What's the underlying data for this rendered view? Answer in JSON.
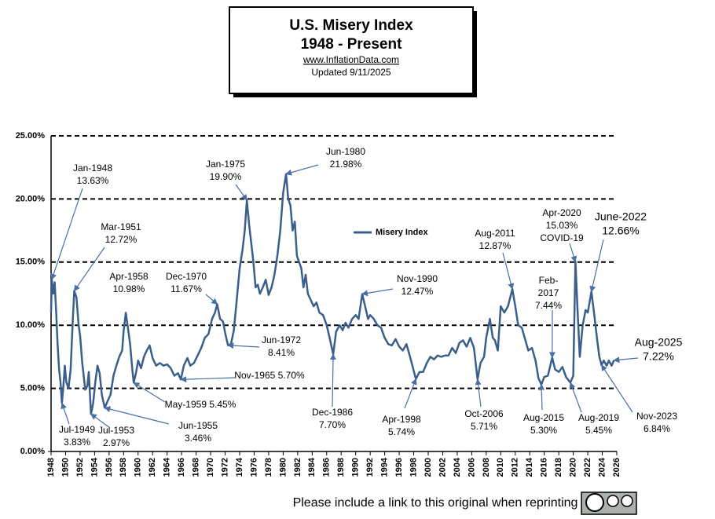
{
  "chart_data": {
    "type": "line",
    "title": "U.S. Misery Index",
    "subtitle": "1948 - Present",
    "source": "www.InflationData.com",
    "updated": "Updated  9/11/2025",
    "footer": "Please include a link to this original when reprinting",
    "x": [
      1948.0,
      1948.1,
      1948.3,
      1948.5,
      1948.7,
      1948.9,
      1949.1,
      1949.3,
      1949.5,
      1949.7,
      1949.9,
      1950.1,
      1950.4,
      1950.7,
      1951.0,
      1951.2,
      1951.5,
      1951.8,
      1952.0,
      1952.3,
      1952.5,
      1952.7,
      1953.0,
      1953.2,
      1953.5,
      1953.8,
      1954.1,
      1954.4,
      1954.7,
      1955.0,
      1955.4,
      1955.8,
      1956.2,
      1956.6,
      1957.0,
      1957.4,
      1957.8,
      1958.0,
      1958.3,
      1958.6,
      1958.9,
      1959.2,
      1959.4,
      1959.7,
      1960.0,
      1960.4,
      1960.8,
      1961.2,
      1961.6,
      1962.0,
      1962.5,
      1963.0,
      1963.5,
      1964.0,
      1964.5,
      1965.0,
      1965.5,
      1965.9,
      1966.3,
      1966.8,
      1967.2,
      1967.7,
      1968.2,
      1968.7,
      1969.2,
      1969.7,
      1970.2,
      1970.6,
      1970.9,
      1971.3,
      1971.7,
      1972.0,
      1972.4,
      1972.8,
      1973.2,
      1973.6,
      1974.0,
      1974.4,
      1974.7,
      1975.0,
      1975.3,
      1975.6,
      1975.9,
      1976.2,
      1976.5,
      1976.8,
      1977.2,
      1977.6,
      1978.0,
      1978.4,
      1978.8,
      1979.2,
      1979.6,
      1980.0,
      1980.4,
      1980.7,
      1981.0,
      1981.3,
      1981.6,
      1981.9,
      1982.2,
      1982.5,
      1982.8,
      1983.1,
      1983.4,
      1983.8,
      1984.2,
      1984.6,
      1985.0,
      1985.5,
      1986.0,
      1986.4,
      1986.9,
      1987.3,
      1987.8,
      1988.2,
      1988.6,
      1989.0,
      1989.5,
      1990.0,
      1990.4,
      1990.9,
      1991.3,
      1991.7,
      1992.0,
      1992.5,
      1993.0,
      1993.5,
      1994.0,
      1994.5,
      1995.0,
      1995.5,
      1996.0,
      1996.5,
      1997.0,
      1997.5,
      1998.0,
      1998.3,
      1998.8,
      1999.3,
      1999.8,
      2000.3,
      2000.8,
      2001.3,
      2001.8,
      2002.3,
      2002.8,
      2003.3,
      2003.8,
      2004.3,
      2004.8,
      2005.3,
      2005.8,
      2006.3,
      2006.8,
      2007.2,
      2007.7,
      2008.0,
      2008.5,
      2008.9,
      2009.2,
      2009.6,
      2010.0,
      2010.5,
      2011.0,
      2011.6,
      2012.0,
      2012.4,
      2012.9,
      2013.3,
      2013.8,
      2014.3,
      2014.8,
      2015.2,
      2015.6,
      2016.0,
      2016.5,
      2017.1,
      2017.5,
      2018.0,
      2018.5,
      2019.0,
      2019.6,
      2020.0,
      2020.3,
      2020.6,
      2020.9,
      2021.3,
      2021.7,
      2022.0,
      2022.5,
      2022.9,
      2023.3,
      2023.6,
      2023.9,
      2024.2,
      2024.6,
      2024.9,
      2025.3,
      2025.6
    ],
    "series": [
      {
        "name": "Misery Index",
        "color": "#3b5f8c",
        "values": [
          11.0,
          13.63,
          12.5,
          13.4,
          11.0,
          8.5,
          6.5,
          5.5,
          3.83,
          5.2,
          6.8,
          5.5,
          5.0,
          6.5,
          10.5,
          12.72,
          12.2,
          10.0,
          9.2,
          7.0,
          6.0,
          4.9,
          5.2,
          6.3,
          2.97,
          3.8,
          5.5,
          6.8,
          6.2,
          4.5,
          3.46,
          4.0,
          4.5,
          6.0,
          6.8,
          7.5,
          8.0,
          9.5,
          10.98,
          9.8,
          8.5,
          6.5,
          5.45,
          6.2,
          7.2,
          6.6,
          7.5,
          8.0,
          8.4,
          7.4,
          6.8,
          7.0,
          6.8,
          6.9,
          6.6,
          6.0,
          6.2,
          5.7,
          6.8,
          7.4,
          6.8,
          7.0,
          7.6,
          8.2,
          9.0,
          9.3,
          10.5,
          11.0,
          11.67,
          10.5,
          10.3,
          9.4,
          8.41,
          8.5,
          9.6,
          12.0,
          14.5,
          16.0,
          17.5,
          19.9,
          18.0,
          16.5,
          15.0,
          13.0,
          13.2,
          12.5,
          13.0,
          13.6,
          12.4,
          13.0,
          14.0,
          15.5,
          17.5,
          20.5,
          21.98,
          20.0,
          19.5,
          17.5,
          18.2,
          15.5,
          15.0,
          14.5,
          13.0,
          14.0,
          12.5,
          12.0,
          11.5,
          11.8,
          11.0,
          10.8,
          10.0,
          9.0,
          7.7,
          9.5,
          10.0,
          9.6,
          10.2,
          9.8,
          10.5,
          10.8,
          10.5,
          12.47,
          11.5,
          10.5,
          10.8,
          10.5,
          10.0,
          9.8,
          9.0,
          8.5,
          8.4,
          8.9,
          8.3,
          8.0,
          8.5,
          7.5,
          6.4,
          5.74,
          6.3,
          6.3,
          7.0,
          7.5,
          7.3,
          7.6,
          7.5,
          7.6,
          7.6,
          8.2,
          7.8,
          8.6,
          8.8,
          8.3,
          9.0,
          8.2,
          5.71,
          7.0,
          7.5,
          9.0,
          10.5,
          9.0,
          8.8,
          8.0,
          11.5,
          11.0,
          11.5,
          12.87,
          11.5,
          10.0,
          9.8,
          9.0,
          8.0,
          8.2,
          7.2,
          5.8,
          5.3,
          5.9,
          6.0,
          7.44,
          6.5,
          6.3,
          6.7,
          5.9,
          5.45,
          6.0,
          15.03,
          11.0,
          7.5,
          10.0,
          11.2,
          11.0,
          12.66,
          10.8,
          8.8,
          7.5,
          6.84,
          7.2,
          6.8,
          7.2,
          6.8,
          7.22
        ]
      }
    ],
    "xlim": [
      1948,
      2026
    ],
    "xticks": [
      1948,
      1950,
      1952,
      1954,
      1956,
      1958,
      1960,
      1962,
      1964,
      1966,
      1968,
      1970,
      1972,
      1974,
      1976,
      1978,
      1980,
      1982,
      1984,
      1986,
      1988,
      1990,
      1992,
      1994,
      1996,
      1998,
      2000,
      2002,
      2004,
      2006,
      2008,
      2010,
      2012,
      2014,
      2016,
      2018,
      2020,
      2022,
      2024,
      2026
    ],
    "ylim": [
      0,
      25
    ],
    "yticks": [
      {
        "value": 0,
        "label": "0.00%"
      },
      {
        "value": 5,
        "label": "5.00%"
      },
      {
        "value": 10,
        "label": "10.00%"
      },
      {
        "value": 15,
        "label": "15.00%"
      },
      {
        "value": 20,
        "label": "20.00%"
      },
      {
        "value": 25,
        "label": "25.00%"
      }
    ],
    "grid": true,
    "annotations": [
      {
        "lines": [
          "Jan-1948",
          "13.63%"
        ],
        "x": 1948.1,
        "y": 13.63
      },
      {
        "lines": [
          "Mar-1951",
          "12.72%"
        ],
        "x": 1951.2,
        "y": 12.72
      },
      {
        "lines": [
          "Apr-1958",
          "10.98%"
        ],
        "x": 1958.3,
        "y": 10.98
      },
      {
        "lines": [
          "Dec-1970",
          "11.67%"
        ],
        "x": 1970.9,
        "y": 11.67
      },
      {
        "lines": [
          "Jan-1975",
          "19.90%"
        ],
        "x": 1975.0,
        "y": 19.9
      },
      {
        "lines": [
          "Jun-1980",
          "21.98%"
        ],
        "x": 1980.4,
        "y": 21.98
      },
      {
        "lines": [
          "Jun-1972",
          "8.41%"
        ],
        "x": 1972.4,
        "y": 8.41
      },
      {
        "lines": [
          "Nov-1965  5.70%"
        ],
        "x": 1965.9,
        "y": 5.7
      },
      {
        "lines": [
          "May-1959  5.45%"
        ],
        "x": 1959.4,
        "y": 5.45
      },
      {
        "lines": [
          "Jun-1955",
          "3.46%"
        ],
        "x": 1955.4,
        "y": 3.46
      },
      {
        "lines": [
          "Jul-1953",
          "2.97%"
        ],
        "x": 1953.5,
        "y": 2.97
      },
      {
        "lines": [
          "Jul-1949",
          "3.83%"
        ],
        "x": 1949.5,
        "y": 3.83
      },
      {
        "lines": [
          "Dec-1986",
          "7.70%"
        ],
        "x": 1986.9,
        "y": 7.7
      },
      {
        "lines": [
          "Nov-1990",
          "12.47%"
        ],
        "x": 1990.9,
        "y": 12.47
      },
      {
        "lines": [
          "Apr-1998",
          "5.74%"
        ],
        "x": 1998.3,
        "y": 5.74
      },
      {
        "lines": [
          "Oct-2006",
          "5.71%"
        ],
        "x": 2006.8,
        "y": 5.71
      },
      {
        "lines": [
          "Aug-2011",
          "12.87%"
        ],
        "x": 2011.6,
        "y": 12.87
      },
      {
        "lines": [
          "Feb-",
          "2017",
          "7.44%"
        ],
        "x": 2017.1,
        "y": 7.44
      },
      {
        "lines": [
          "Apr-2020",
          "15.03%",
          "COVID-19"
        ],
        "x": 2020.3,
        "y": 15.03
      },
      {
        "lines": [
          "June-2022",
          "12.66%"
        ],
        "x": 2022.5,
        "y": 12.66
      },
      {
        "lines": [
          "Aug-2015",
          "5.30%"
        ],
        "x": 2015.6,
        "y": 5.3
      },
      {
        "lines": [
          "Aug-2019",
          "5.45%"
        ],
        "x": 2019.6,
        "y": 5.45
      },
      {
        "lines": [
          "Nov-2023",
          "6.84%"
        ],
        "x": 2023.9,
        "y": 6.84
      },
      {
        "lines": [
          "Aug-2025",
          "7.22%"
        ],
        "x": 2025.6,
        "y": 7.22
      }
    ]
  }
}
